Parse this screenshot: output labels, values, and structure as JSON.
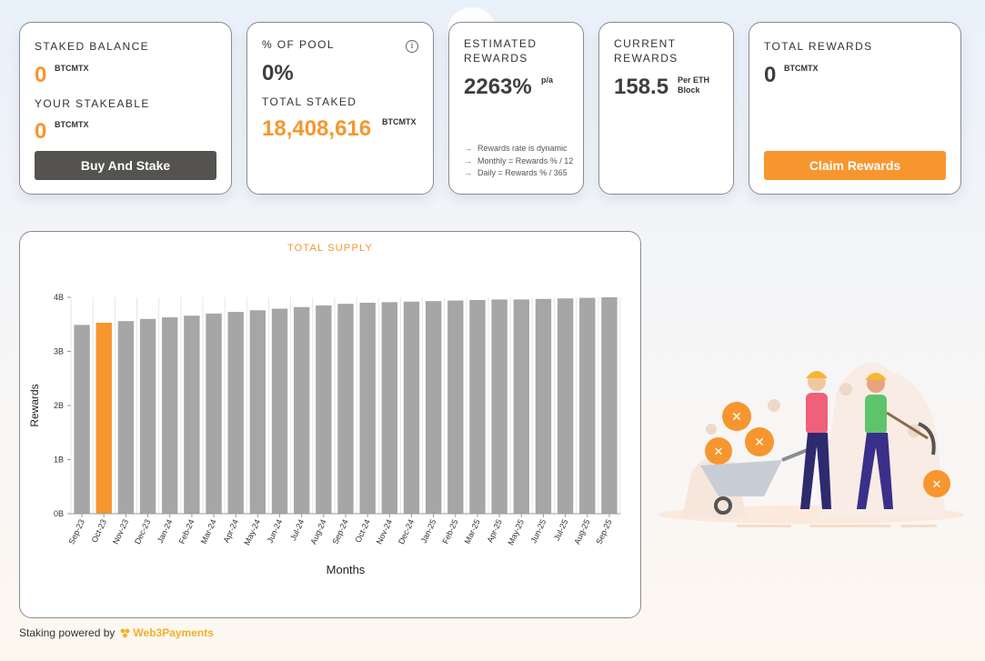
{
  "cards": {
    "staked_balance": {
      "label": "STAKED BALANCE",
      "value": "0",
      "unit": "BTCMTX"
    },
    "your_stakeable": {
      "label": "YOUR STAKEABLE",
      "value": "0",
      "unit": "BTCMTX",
      "button": "Buy And Stake"
    },
    "pool": {
      "label": "% OF POOL",
      "value": "0%",
      "icon": "info-icon"
    },
    "total_staked": {
      "label": "TOTAL STAKED",
      "value": "18,408,616",
      "unit": "BTCMTX"
    },
    "estimated_rewards": {
      "label_line1": "ESTIMATED",
      "label_line2": "REWARDS",
      "value": "2263%",
      "unit": "p/a",
      "notes": [
        "Rewards rate is dynamic",
        "Monthly = Rewards % / 12",
        "Daily = Rewards % / 365"
      ]
    },
    "current_rewards": {
      "label_line1": "CURRENT",
      "label_line2": "REWARDS",
      "value": "158.5",
      "unit_line1": "Per ETH",
      "unit_line2": "Block"
    },
    "total_rewards": {
      "label": "TOTAL REWARDS",
      "value": "0",
      "unit": "BTCMTX",
      "button": "Claim Rewards"
    }
  },
  "colors": {
    "accent": "#f7962f",
    "bar": "#a6a6a6",
    "button_dark": "#555350"
  },
  "chart_data": {
    "type": "bar",
    "title": "TOTAL SUPPLY",
    "xlabel": "Months",
    "ylabel": "Rewards",
    "categories": [
      "Sep-23",
      "Oct-23",
      "Nov-23",
      "Dec-23",
      "Jan-24",
      "Feb-24",
      "Mar-24",
      "Apr-24",
      "May-24",
      "Jun-24",
      "Jul-24",
      "Aug-24",
      "Sep-24",
      "Oct-24",
      "Nov-24",
      "Dec-24",
      "Jan-25",
      "Feb-25",
      "Mar-25",
      "Apr-25",
      "May-25",
      "Jun-25",
      "Jul-25",
      "Aug-25",
      "Sep-25"
    ],
    "values": [
      3.49,
      3.53,
      3.56,
      3.6,
      3.63,
      3.66,
      3.7,
      3.73,
      3.76,
      3.79,
      3.82,
      3.85,
      3.88,
      3.9,
      3.91,
      3.92,
      3.93,
      3.94,
      3.95,
      3.96,
      3.96,
      3.97,
      3.98,
      3.99,
      4.0
    ],
    "value_unit": "B",
    "highlight_category": "Oct-23",
    "ylim": [
      0,
      4
    ],
    "yticks": [
      "0B",
      "1B",
      "2B",
      "3B",
      "4B"
    ],
    "grid": "vertical",
    "legend": "none"
  },
  "footer": {
    "text": "Staking powered by",
    "brand": "Web3Payments",
    "brand_icon": "web3payments-logo-icon"
  }
}
